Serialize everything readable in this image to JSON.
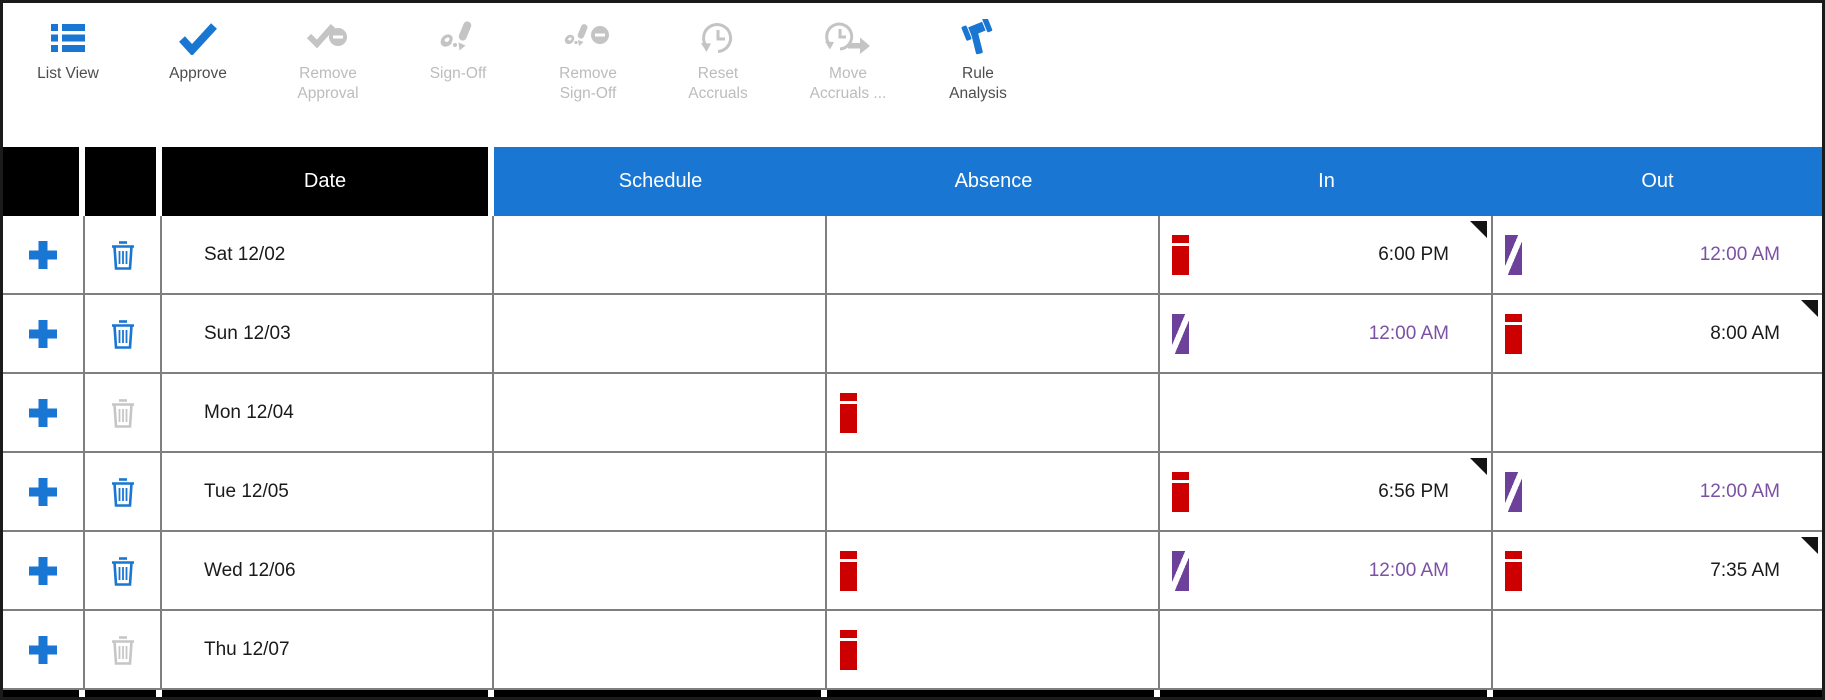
{
  "colors": {
    "accent_blue": "#1976d2",
    "exception_red": "#cc0000",
    "overnight_purple": "#6d4099",
    "overnight_text_purple": "#7b51a4",
    "header_black": "#000000"
  },
  "toolbar": {
    "items": [
      {
        "id": "list-view",
        "label": "List View",
        "icon": "list-view-icon",
        "enabled": true
      },
      {
        "id": "approve",
        "label": "Approve",
        "icon": "approve-icon",
        "enabled": true
      },
      {
        "id": "remove-approval",
        "label": "Remove\nApproval",
        "icon": "remove-approval-icon",
        "enabled": false
      },
      {
        "id": "sign-off",
        "label": "Sign-Off",
        "icon": "sign-off-icon",
        "enabled": false
      },
      {
        "id": "remove-sign-off",
        "label": "Remove\nSign-Off",
        "icon": "remove-sign-off-icon",
        "enabled": false
      },
      {
        "id": "reset-accruals",
        "label": "Reset\nAccruals",
        "icon": "reset-accruals-icon",
        "enabled": false
      },
      {
        "id": "move-accruals",
        "label": "Move\nAccruals ...",
        "icon": "move-accruals-icon",
        "enabled": false
      },
      {
        "id": "rule-analysis",
        "label": "Rule\nAnalysis",
        "icon": "rule-analysis-icon",
        "enabled": true
      }
    ]
  },
  "table": {
    "column_headers": [
      {
        "id": "add",
        "label": ""
      },
      {
        "id": "delete",
        "label": ""
      },
      {
        "id": "date",
        "label": "Date"
      },
      {
        "id": "schedule",
        "label": "Schedule"
      },
      {
        "id": "absence",
        "label": "Absence"
      },
      {
        "id": "in",
        "label": "In"
      },
      {
        "id": "out",
        "label": "Out"
      }
    ],
    "rows": [
      {
        "date": "Sat 12/02",
        "add_enabled": true,
        "delete_enabled": true,
        "schedule": "",
        "absence": null,
        "in": {
          "time": "6:00 PM",
          "indicator": "exception",
          "time_style": "normal",
          "has_marker": true
        },
        "out": {
          "time": "12:00 AM",
          "indicator": "overnight",
          "time_style": "overnight",
          "has_marker": false
        }
      },
      {
        "date": "Sun 12/03",
        "add_enabled": true,
        "delete_enabled": true,
        "schedule": "",
        "absence": null,
        "in": {
          "time": "12:00 AM",
          "indicator": "overnight",
          "time_style": "overnight",
          "has_marker": false
        },
        "out": {
          "time": "8:00 AM",
          "indicator": "exception",
          "time_style": "normal",
          "has_marker": true
        }
      },
      {
        "date": "Mon 12/04",
        "add_enabled": true,
        "delete_enabled": false,
        "schedule": "",
        "absence": "exception",
        "in": null,
        "out": null
      },
      {
        "date": "Tue 12/05",
        "add_enabled": true,
        "delete_enabled": true,
        "schedule": "",
        "absence": null,
        "in": {
          "time": "6:56 PM",
          "indicator": "exception",
          "time_style": "normal",
          "has_marker": true
        },
        "out": {
          "time": "12:00 AM",
          "indicator": "overnight",
          "time_style": "overnight",
          "has_marker": false
        }
      },
      {
        "date": "Wed 12/06",
        "add_enabled": true,
        "delete_enabled": true,
        "schedule": "",
        "absence": "exception",
        "in": {
          "time": "12:00 AM",
          "indicator": "overnight",
          "time_style": "overnight",
          "has_marker": false
        },
        "out": {
          "time": "7:35 AM",
          "indicator": "exception",
          "time_style": "normal",
          "has_marker": true
        }
      },
      {
        "date": "Thu 12/07",
        "add_enabled": true,
        "delete_enabled": false,
        "schedule": "",
        "absence": "exception",
        "in": null,
        "out": null
      }
    ]
  }
}
